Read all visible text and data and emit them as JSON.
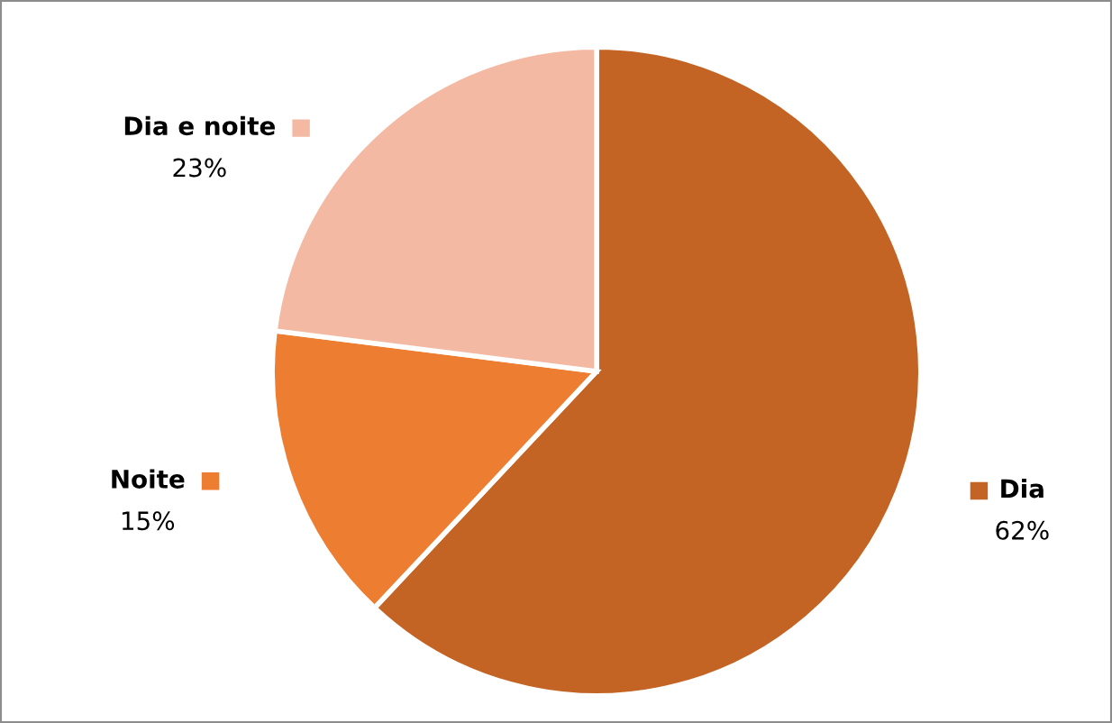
{
  "chart_data": {
    "type": "pie",
    "categories": [
      "Dia",
      "Noite",
      "Dia e noite"
    ],
    "values": [
      62,
      15,
      23
    ],
    "colors": [
      "#c46424",
      "#ed7d31",
      "#f4b9a3"
    ],
    "value_labels": [
      "62%",
      "15%",
      "23%"
    ],
    "legend": "left"
  }
}
